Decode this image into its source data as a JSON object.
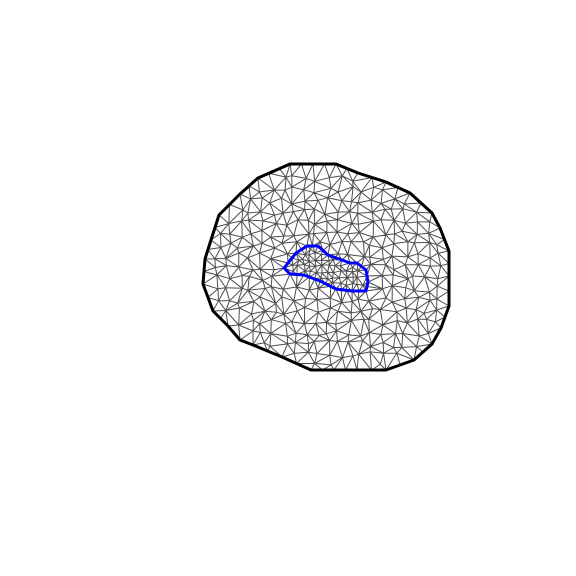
{
  "figure": {
    "kind": "triangular-mesh",
    "colors": {
      "background": "#ffffff",
      "outer_boundary": "#000000",
      "inner_boundary": "#0000ff",
      "mesh_edges": "#4d4d4d"
    }
  }
}
